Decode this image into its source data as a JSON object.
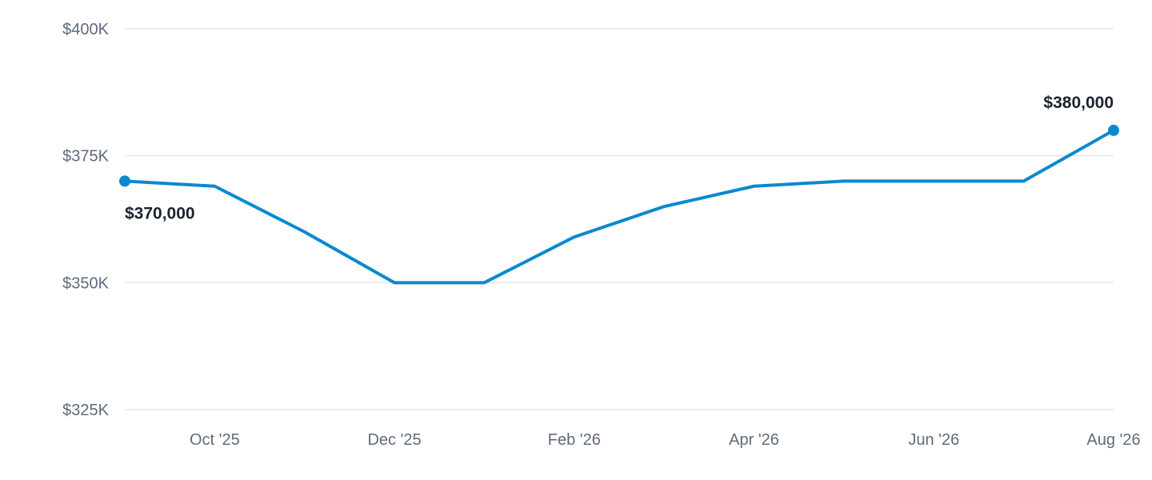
{
  "chart_data": {
    "type": "line",
    "title": "",
    "xlabel": "",
    "ylabel": "",
    "x": [
      "Sep '25",
      "Oct '25",
      "Nov '25",
      "Dec '25",
      "Jan '26",
      "Feb '26",
      "Mar '26",
      "Apr '26",
      "May '26",
      "Jun '26",
      "Jul '26",
      "Aug '26"
    ],
    "x_tick_labels": [
      "Oct '25",
      "Dec '25",
      "Feb '26",
      "Apr '26",
      "Jun '26",
      "Aug '26"
    ],
    "series": [
      {
        "values": [
          370000,
          369000,
          360000,
          350000,
          350000,
          359000,
          365000,
          369000,
          370000,
          370000,
          370000,
          380000
        ],
        "color": "#0b88d0"
      }
    ],
    "ylim": [
      325000,
      400000
    ],
    "y_ticks": [
      {
        "value": 325000,
        "label": "$325K"
      },
      {
        "value": 350000,
        "label": "$350K"
      },
      {
        "value": 375000,
        "label": "$375K"
      },
      {
        "value": 400000,
        "label": "$400K"
      }
    ],
    "grid": true,
    "legend": "none",
    "annotations": [
      {
        "index": 0,
        "text": "$370,000",
        "placement": "below"
      },
      {
        "index": 11,
        "text": "$380,000",
        "placement": "above"
      }
    ]
  }
}
